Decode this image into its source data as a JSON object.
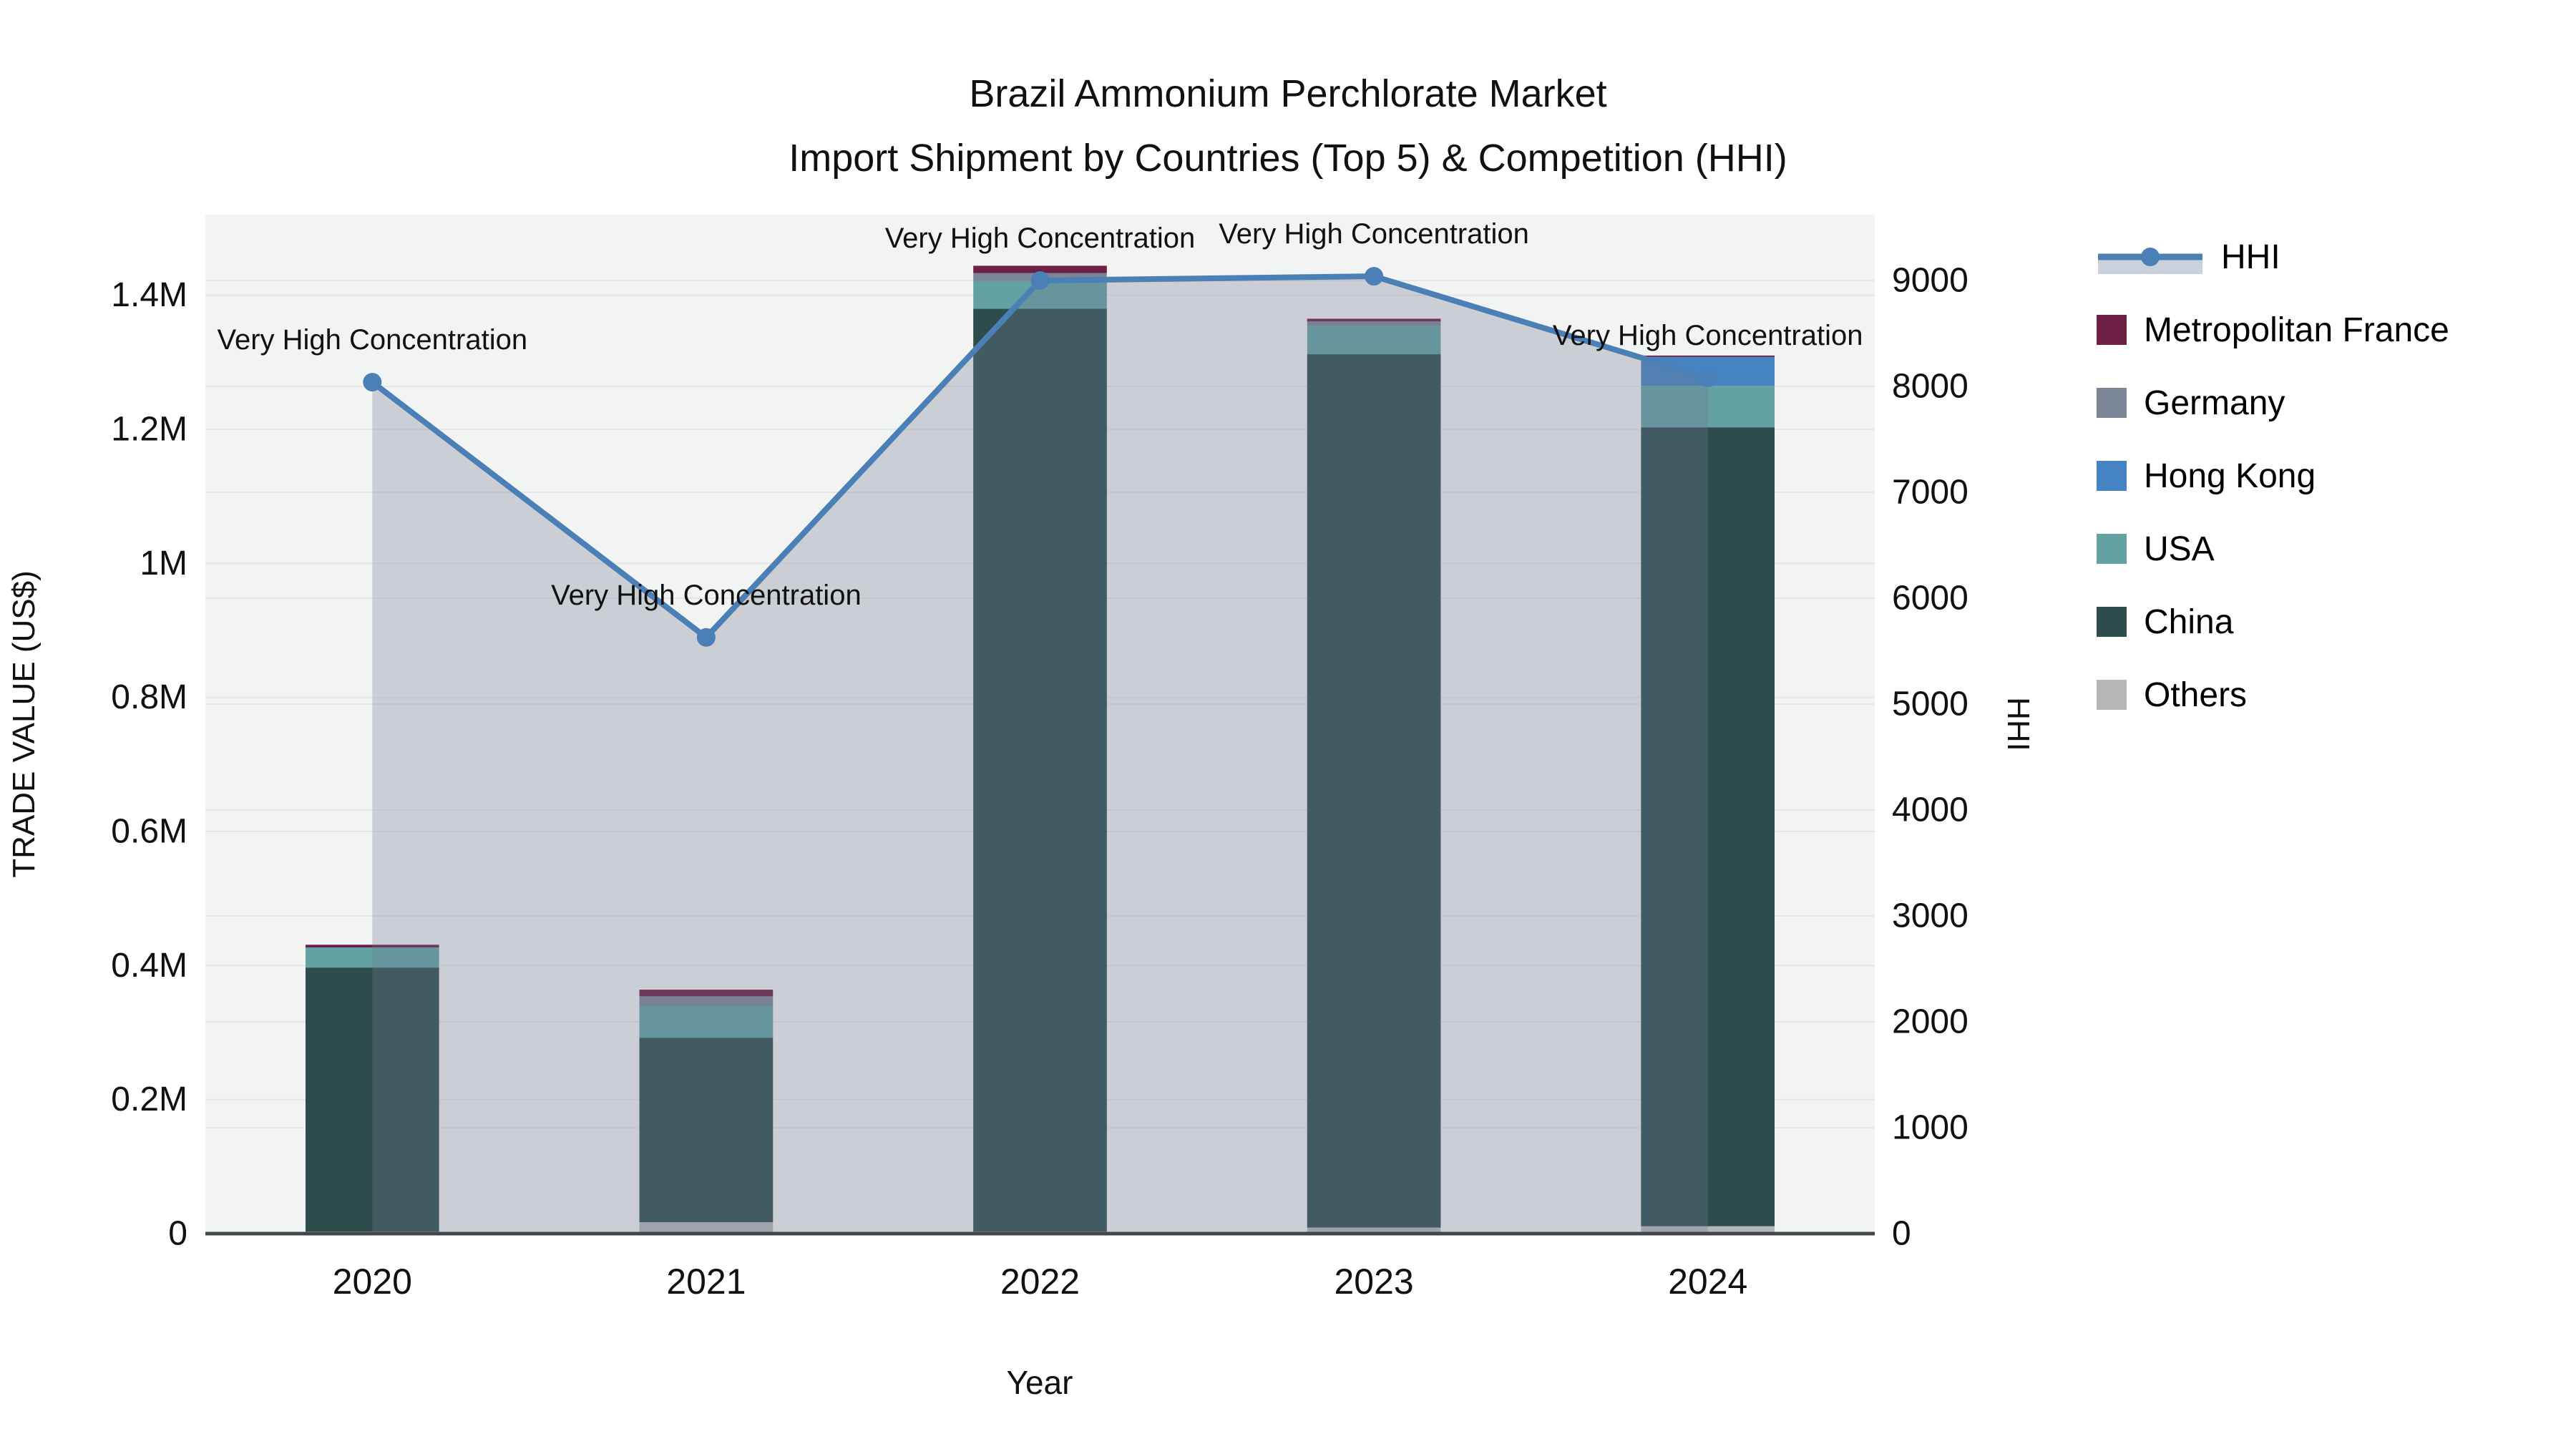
{
  "title": {
    "line1": "Brazil Ammonium Perchlorate Market",
    "line2": "Import Shipment by Countries (Top 5) & Competition (HHI)"
  },
  "chart_data": {
    "type": "bar",
    "stacked": true,
    "title": "Brazil Ammonium Perchlorate Market Import Shipment by Countries (Top 5) & Competition (HHI)",
    "xlabel": "Year",
    "ylabel_left": "TRADE VALUE (US$)",
    "ylabel_right": "HHI",
    "categories": [
      "2020",
      "2021",
      "2022",
      "2023",
      "2024"
    ],
    "series": [
      {
        "name": "Others",
        "color": "#b4b6b8",
        "values": [
          3000,
          17000,
          3000,
          9000,
          11000
        ]
      },
      {
        "name": "China",
        "color": "#2e4c4c",
        "values": [
          394000,
          275000,
          1377000,
          1303000,
          1192000
        ]
      },
      {
        "name": "USA",
        "color": "#63a1a3",
        "values": [
          30000,
          48000,
          41000,
          42000,
          62000
        ]
      },
      {
        "name": "Hong Kong",
        "color": "#4583c2",
        "values": [
          0,
          0,
          0,
          0,
          43000
        ]
      },
      {
        "name": "Germany",
        "color": "#7b8697",
        "values": [
          0,
          14000,
          12000,
          7000,
          0
        ]
      },
      {
        "name": "Metropolitan France",
        "color": "#6d1f44",
        "values": [
          4000,
          10000,
          11000,
          4000,
          2000
        ]
      }
    ],
    "line_series": {
      "name": "HHI",
      "color": "#4a80b5",
      "area_fill": "rgba(111,124,145,0.30)",
      "values": [
        8040,
        5630,
        9000,
        9040,
        8080
      ]
    },
    "annotations": {
      "text": "Very High Concentration",
      "points": [
        "2020",
        "2021",
        "2022",
        "2023",
        "2024"
      ]
    },
    "y_left": {
      "tick_values": [
        0,
        200000,
        400000,
        600000,
        800000,
        1000000,
        1200000,
        1400000
      ],
      "tick_labels": [
        "0",
        "0.2M",
        "0.4M",
        "0.6M",
        "0.8M",
        "1M",
        "1.2M",
        "1.4M"
      ],
      "range": [
        0,
        1520000
      ]
    },
    "y_right": {
      "tick_values": [
        0,
        1000,
        2000,
        3000,
        4000,
        5000,
        6000,
        7000,
        8000,
        9000
      ],
      "tick_labels": [
        "0",
        "1000",
        "2000",
        "3000",
        "4000",
        "5000",
        "6000",
        "7000",
        "8000",
        "9000"
      ],
      "range": [
        0,
        9620
      ]
    },
    "legend_order": [
      "HHI",
      "Metropolitan France",
      "Germany",
      "Hong Kong",
      "USA",
      "China",
      "Others"
    ],
    "legend_position": "right",
    "grid": true,
    "style": {
      "plot_bg": "#f2f3f3",
      "grid_color": "#e4e7e9",
      "axis_line_color": "#41464b",
      "text_color": "#111111",
      "legend_fill_glyph": "#c9d2dc"
    }
  }
}
